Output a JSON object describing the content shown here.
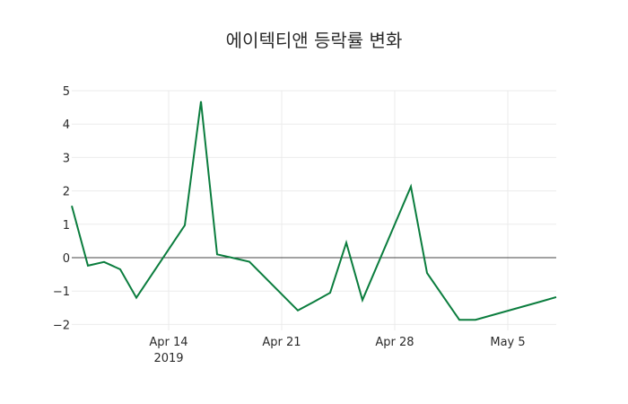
{
  "chart_data": {
    "type": "line",
    "title": "에이텍티앤 등락률 변화",
    "xlabel": "",
    "ylabel": "",
    "x": [
      "2019-04-08",
      "2019-04-09",
      "2019-04-10",
      "2019-04-11",
      "2019-04-12",
      "2019-04-15",
      "2019-04-16",
      "2019-04-17",
      "2019-04-18",
      "2019-04-19",
      "2019-04-22",
      "2019-04-23",
      "2019-04-24",
      "2019-04-25",
      "2019-04-26",
      "2019-04-29",
      "2019-04-30",
      "2019-05-02",
      "2019-05-03",
      "2019-05-07",
      "2019-05-08"
    ],
    "series": [
      {
        "name": "등락률",
        "color": "#0b7d3e",
        "values": [
          1.55,
          -0.24,
          -0.13,
          -0.35,
          -1.2,
          0.97,
          4.68,
          0.1,
          -0.01,
          -0.12,
          -1.58,
          -1.32,
          -1.05,
          0.45,
          -1.27,
          2.13,
          -0.46,
          -1.86,
          -1.86,
          -1.32,
          -1.18
        ]
      }
    ],
    "ylim": [
      -2.2,
      5.1
    ],
    "yticks": [
      5,
      4,
      3,
      2,
      1,
      0,
      -1,
      -2
    ],
    "ytick_labels": [
      "5",
      "4",
      "3",
      "2",
      "1",
      "0",
      "−1",
      "−2"
    ],
    "xticks": [
      "2019-04-14",
      "2019-04-21",
      "2019-04-28",
      "2019-05-05"
    ],
    "xtick_labels": [
      "Apr 14",
      "Apr 21",
      "Apr 28",
      "May 5"
    ],
    "xtick_year": "2019",
    "grid": true,
    "zero_line": true,
    "legend": "none"
  }
}
